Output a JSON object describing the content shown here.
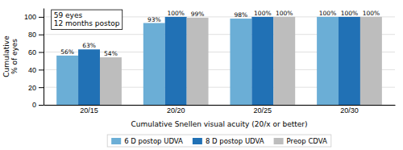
{
  "chart_data": {
    "type": "bar",
    "categories": [
      "20/15",
      "20/20",
      "20/25",
      "20/30"
    ],
    "series": [
      {
        "name": "6 D postop UDVA",
        "color": "#6BAED6",
        "values": [
          56,
          93,
          98,
          100
        ],
        "value_labels": [
          "56%",
          "93%",
          "98%",
          "100%"
        ]
      },
      {
        "name": "8 D postop UDVA",
        "color": "#2171B5",
        "values": [
          63,
          100,
          100,
          100
        ],
        "value_labels": [
          "63%",
          "100%",
          "100%",
          "100%"
        ]
      },
      {
        "name": "Preop CDVA",
        "color": "#BDBDBD",
        "values": [
          54,
          99,
          100,
          100
        ],
        "value_labels": [
          "54%",
          "99%",
          "100%",
          "100%"
        ]
      }
    ],
    "xlabel": "Cumulative Snellen visual acuity (20/x or better)",
    "ylabel": "Cumulative\n% of eyes",
    "annotation": "59 eyes\n12 months postop",
    "ylim": [
      0,
      110
    ],
    "yticks": [
      0,
      20,
      40,
      60,
      80,
      100
    ],
    "grid": true,
    "data_labels": true,
    "legend": "bottom"
  }
}
